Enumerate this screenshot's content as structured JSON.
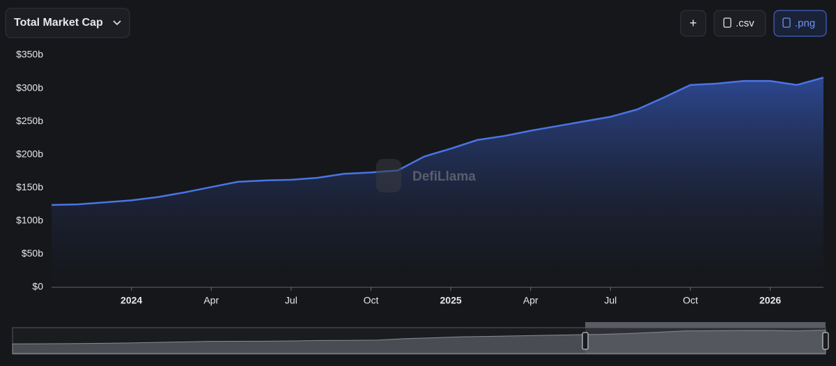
{
  "chart_data": {
    "type": "area",
    "title": "Total Market Cap",
    "x": [
      "2023-10",
      "2023-11",
      "2023-12",
      "2024-01",
      "2024-02",
      "2024-03",
      "2024-04",
      "2024-05",
      "2024-06",
      "2024-07",
      "2024-08",
      "2024-09",
      "2024-10",
      "2024-11",
      "2024-12",
      "2025-01",
      "2025-02",
      "2025-03",
      "2025-04",
      "2025-05",
      "2025-06",
      "2025-07",
      "2025-08",
      "2025-09",
      "2025-10",
      "2025-11",
      "2025-12",
      "2026-01",
      "2026-02",
      "2026-03"
    ],
    "values": [
      124,
      125,
      128,
      131,
      136,
      143,
      151,
      159,
      161,
      162,
      165,
      171,
      173,
      176,
      197,
      209,
      222,
      228,
      236,
      243,
      250,
      257,
      268,
      286,
      305,
      307,
      311,
      311,
      305,
      316
    ],
    "color": "#4a75e6",
    "xlim": [
      "2023-10",
      "2026-03"
    ],
    "xticks": [
      {
        "value": "2024-01",
        "label": "2024"
      },
      {
        "value": "2024-04",
        "label": "Apr"
      },
      {
        "value": "2024-07",
        "label": "Jul"
      },
      {
        "value": "2024-10",
        "label": "Oct"
      },
      {
        "value": "2025-01",
        "label": "2025"
      },
      {
        "value": "2025-04",
        "label": "Apr"
      },
      {
        "value": "2025-07",
        "label": "Jul"
      },
      {
        "value": "2025-10",
        "label": "Oct"
      },
      {
        "value": "2026-01",
        "label": "2026"
      }
    ],
    "ylim": [
      0,
      350
    ],
    "yticks": [
      {
        "value": 0,
        "label": "$0"
      },
      {
        "value": 50,
        "label": "$50b"
      },
      {
        "value": 100,
        "label": "$100b"
      },
      {
        "value": 150,
        "label": "$150b"
      },
      {
        "value": 200,
        "label": "$200b"
      },
      {
        "value": 250,
        "label": "$250b"
      },
      {
        "value": 300,
        "label": "$300b"
      },
      {
        "value": 350,
        "label": "$350b"
      }
    ],
    "grid": false
  },
  "ui": {
    "buttons": [
      "+",
      ".csv",
      ".png"
    ],
    "watermark": "DefiLlama"
  }
}
